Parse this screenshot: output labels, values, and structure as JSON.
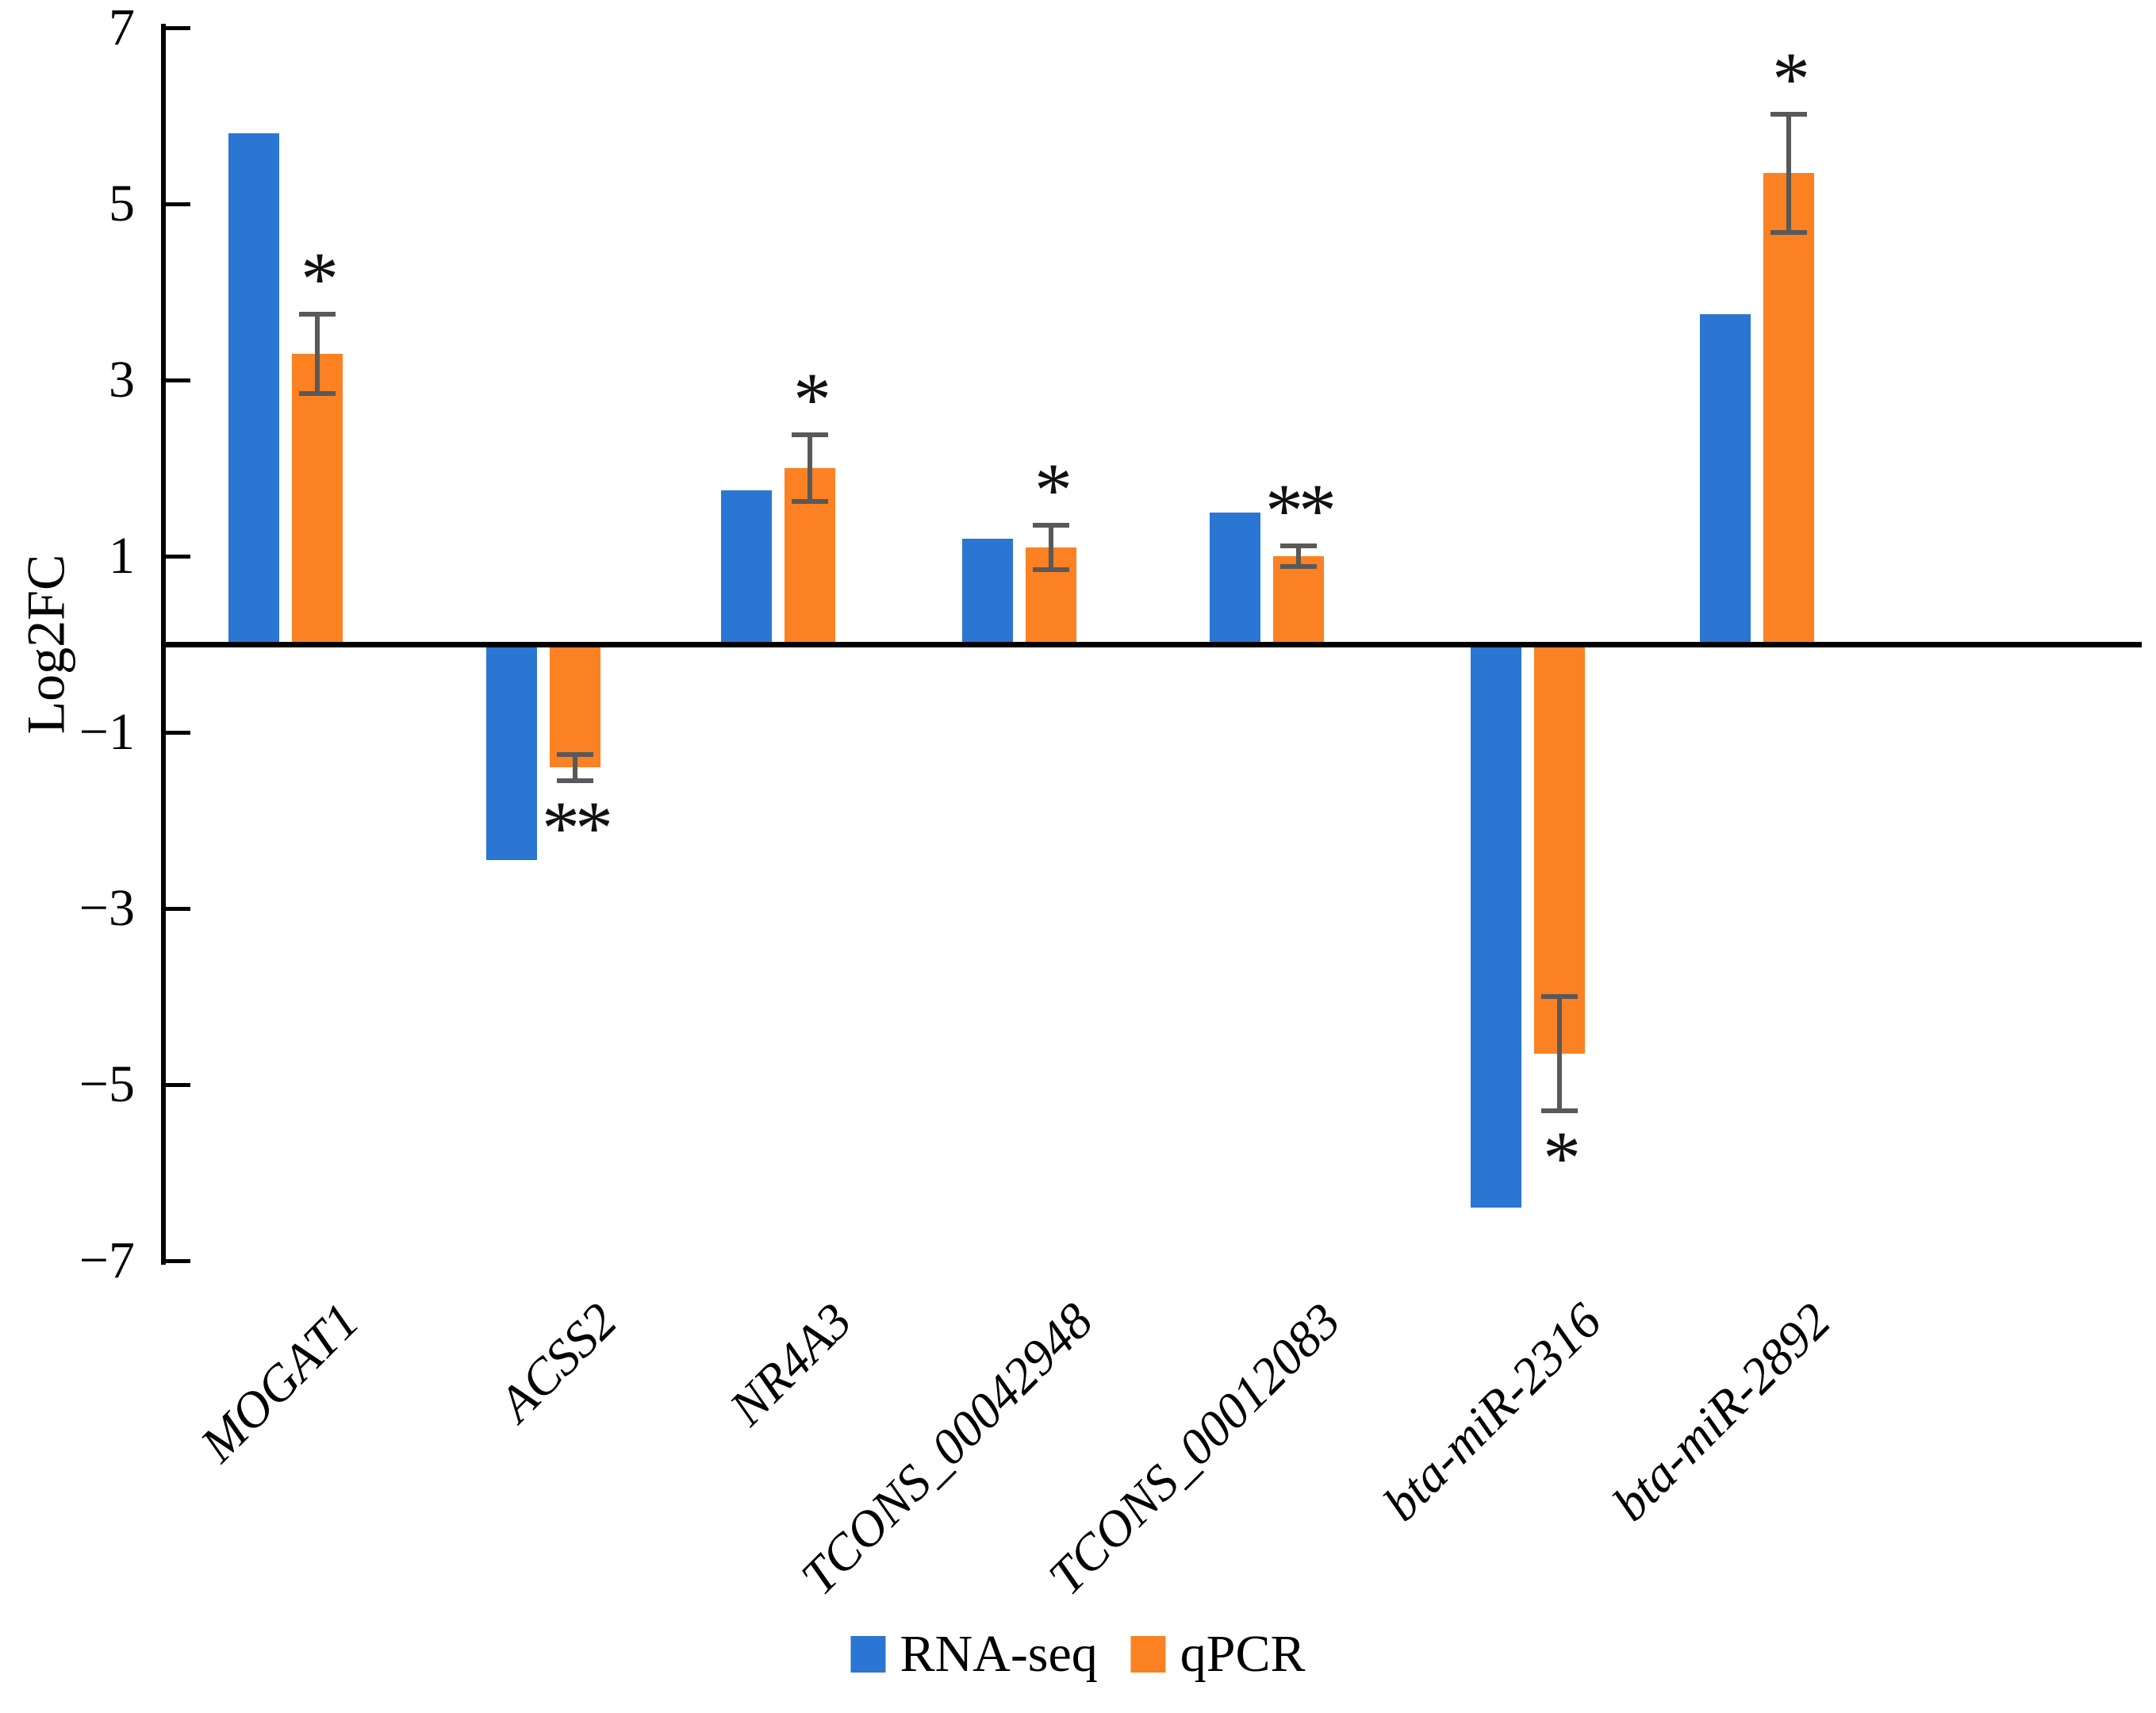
{
  "figure": {
    "background": "#ffffff",
    "ylabel": "Log2FC"
  },
  "legend": [
    {
      "label": "RNA-seq",
      "color": "#2A76D2"
    },
    {
      "label": "qPCR",
      "color": "#FB8122"
    }
  ],
  "chart_data": {
    "type": "bar",
    "title": "",
    "xlabel": "",
    "ylabel": "Log2FC",
    "ylim": [
      -7,
      7
    ],
    "yticks": [
      7,
      5,
      3,
      1,
      -1,
      -3,
      -5,
      -7
    ],
    "grid": false,
    "legend_position": "bottom-center",
    "categories": [
      "MOGAT1",
      "ACSS2",
      "NR4A3",
      "TCONS_00042948",
      "TCONS_00012083",
      "bta-miR-2316",
      "bta-miR-2892"
    ],
    "series": [
      {
        "name": "RNA-seq",
        "color": "#2A76D2",
        "values": [
          5.8,
          -2.45,
          1.75,
          1.2,
          1.5,
          -6.4,
          3.75
        ]
      },
      {
        "name": "qPCR",
        "color": "#FB8122",
        "values": [
          3.3,
          -1.4,
          2.0,
          1.1,
          1.0,
          -4.65,
          5.35
        ],
        "errors": [
          0.45,
          0.15,
          0.38,
          0.25,
          0.12,
          0.65,
          0.67
        ],
        "significance": [
          "*",
          "**",
          "*",
          "*",
          "**",
          "*",
          "*"
        ]
      }
    ],
    "error_bar_color": "#595959",
    "axis_color": "#000000",
    "significance_color": "#111111"
  }
}
